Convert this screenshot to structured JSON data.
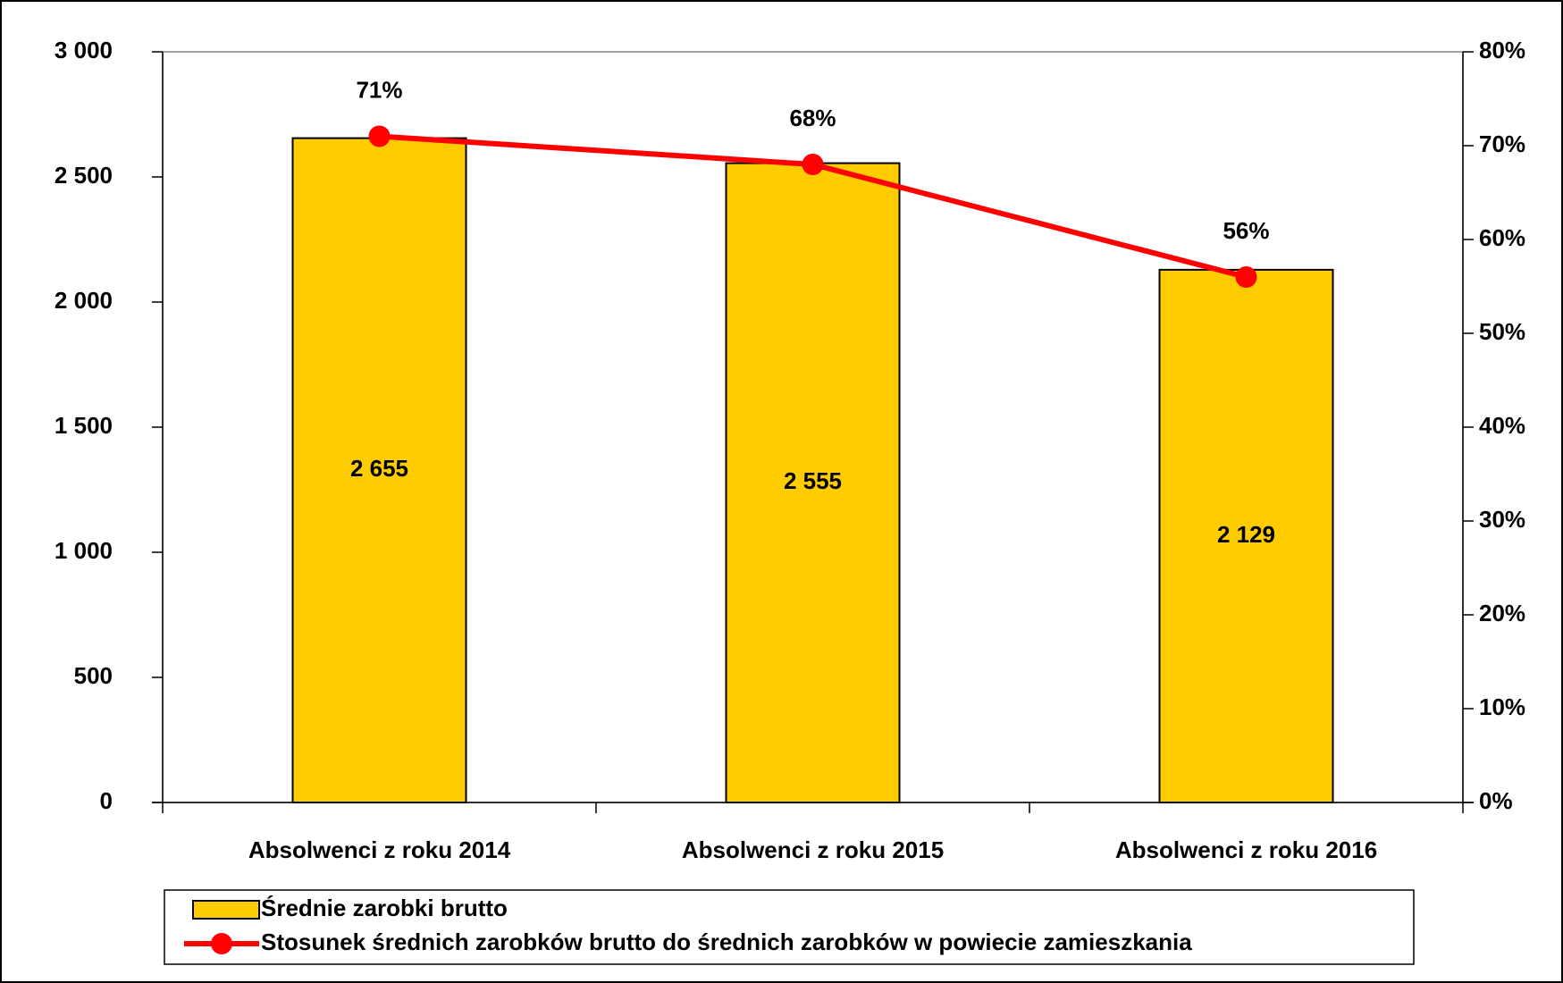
{
  "chart_data": {
    "type": "combo",
    "categories": [
      "Absolwenci z roku 2014",
      "Absolwenci z roku 2015",
      "Absolwenci z roku 2016"
    ],
    "series": [
      {
        "name": "Średnie zarobki brutto",
        "type": "bar",
        "color": "#ffcc00",
        "values": [
          2655,
          2555,
          2129
        ],
        "value_labels": [
          "2 655",
          "2 555",
          "2 129"
        ]
      },
      {
        "name": "Stosunek średnich zarobków brutto do średnich zarobków w powiecie zamieszkania",
        "type": "line",
        "axis": "y2",
        "color": "#ff0000",
        "values": [
          71,
          68,
          56
        ],
        "value_labels": [
          "71%",
          "68%",
          "56%"
        ]
      }
    ],
    "ylim": [
      0,
      3000
    ],
    "yticks": [
      {
        "value": 0,
        "label": "0"
      },
      {
        "value": 500,
        "label": "500"
      },
      {
        "value": 1000,
        "label": "1 000"
      },
      {
        "value": 1500,
        "label": "1 500"
      },
      {
        "value": 2000,
        "label": "2 000"
      },
      {
        "value": 2500,
        "label": "2 500"
      },
      {
        "value": 3000,
        "label": "3 000"
      }
    ],
    "y2lim": [
      0,
      80
    ],
    "y2ticks": [
      {
        "value": 0,
        "label": "0%"
      },
      {
        "value": 10,
        "label": "10%"
      },
      {
        "value": 20,
        "label": "20%"
      },
      {
        "value": 30,
        "label": "30%"
      },
      {
        "value": 40,
        "label": "40%"
      },
      {
        "value": 50,
        "label": "50%"
      },
      {
        "value": 60,
        "label": "60%"
      },
      {
        "value": 70,
        "label": "70%"
      },
      {
        "value": 80,
        "label": "80%"
      }
    ],
    "legend": "bottom"
  }
}
